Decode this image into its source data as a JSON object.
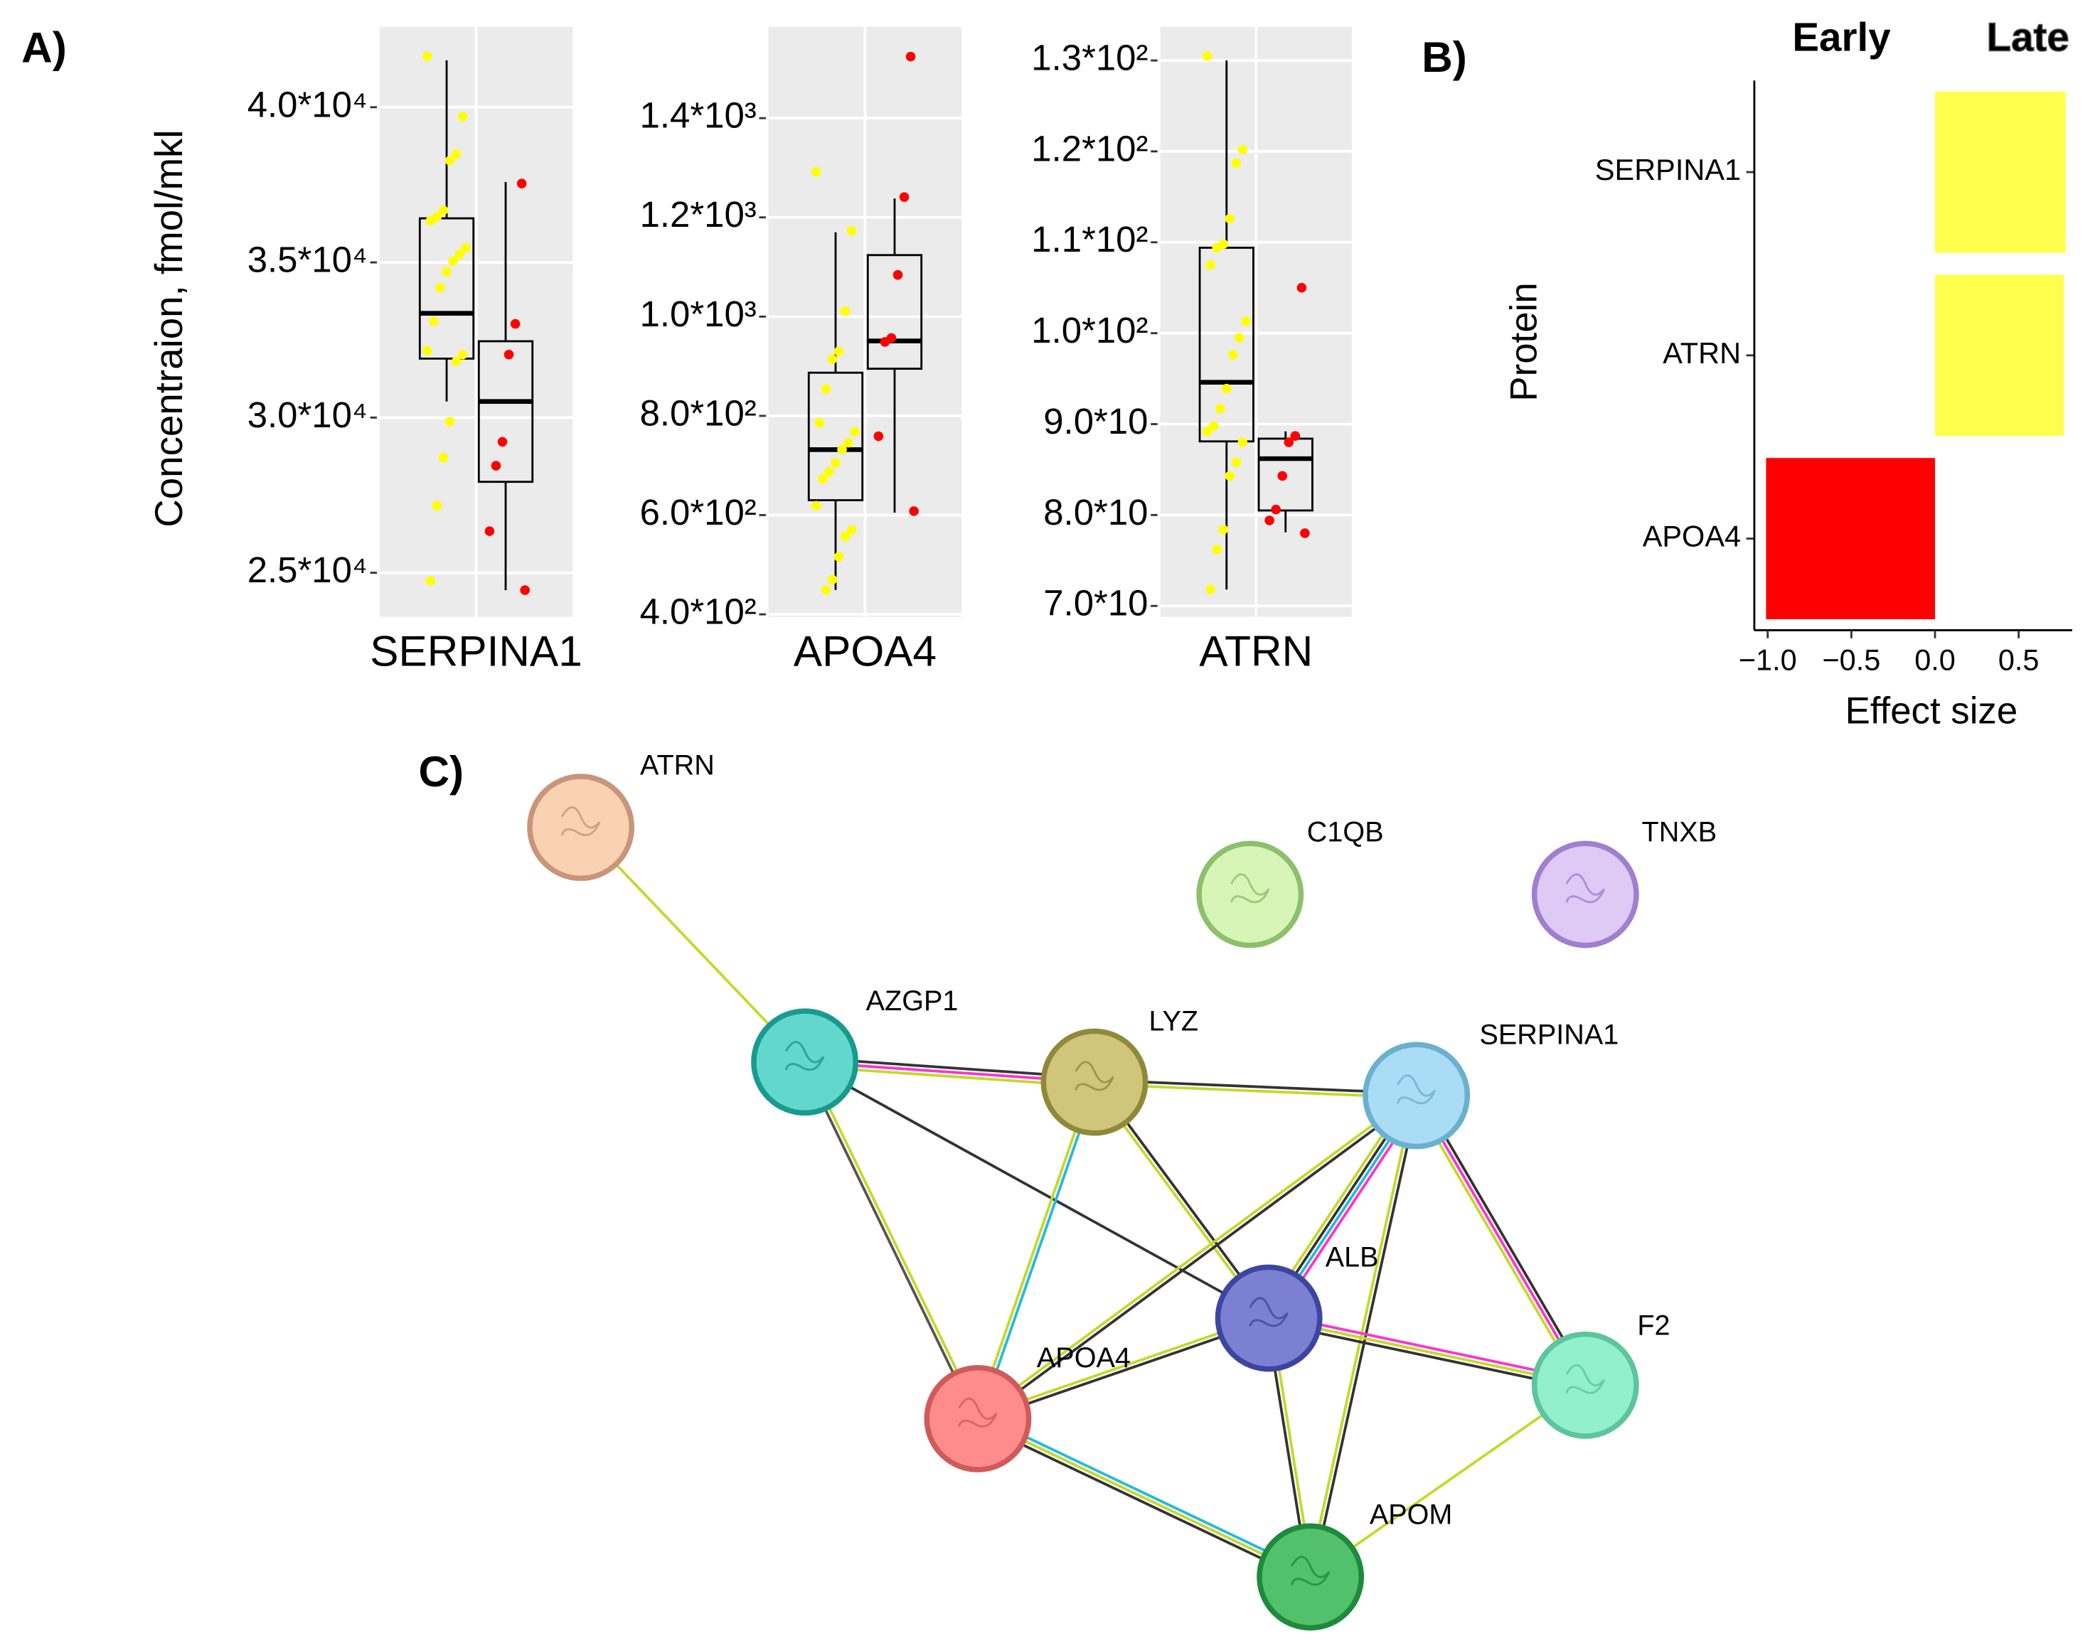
{
  "chart_data": [
    {
      "type": "box",
      "panel_label": "A)",
      "ylabel": "Concentraion, fmol/mkl",
      "xlabel": "SERPINA1",
      "ylim": [
        23580,
        42590
      ],
      "grid": true,
      "yticks": [
        {
          "value": 25000,
          "label": "2.5*10⁴"
        },
        {
          "value": 30000,
          "label": "3.0*10⁴"
        },
        {
          "value": 35000,
          "label": "3.5*10⁴"
        },
        {
          "value": 40000,
          "label": "4.0*10⁴"
        }
      ],
      "series": [
        {
          "color": "#ffff00",
          "whisker_low": 30520,
          "q1": 31900,
          "median": 33360,
          "q3": 36420,
          "whisker_high": 41510,
          "points": [
            41640,
            39700,
            38490,
            38280,
            36680,
            36470,
            36340,
            35470,
            35260,
            35040,
            34700,
            34180,
            33100,
            32160,
            32030,
            31810,
            29870,
            28710,
            27160,
            24740
          ]
        },
        {
          "color": "#ff0000",
          "whisker_low": 24440,
          "q1": 27930,
          "median": 30520,
          "q3": 32460,
          "whisker_high": 37590,
          "points": [
            37540,
            33020,
            32030,
            29220,
            28450,
            26340,
            24440
          ]
        }
      ]
    },
    {
      "type": "box",
      "xlabel": "APOA4",
      "ylim": [
        395,
        1584
      ],
      "grid": true,
      "yticks": [
        {
          "value": 400,
          "label": "4.0*10²"
        },
        {
          "value": 600,
          "label": "6.0*10²"
        },
        {
          "value": 800,
          "label": "8.0*10²"
        },
        {
          "value": 1000,
          "label": "1.0*10³"
        },
        {
          "value": 1200,
          "label": "1.2*10³"
        },
        {
          "value": 1400,
          "label": "1.4*10³"
        }
      ],
      "series": [
        {
          "color": "#ffff00",
          "whisker_low": 449,
          "q1": 630,
          "median": 732,
          "q3": 887,
          "whisker_high": 1170,
          "points": [
            1292,
            1173,
            1011,
            930,
            914,
            854,
            786,
            768,
            746,
            732,
            705,
            687,
            673,
            619,
            570,
            557,
            516,
            470,
            449
          ]
        },
        {
          "color": "#ff0000",
          "whisker_low": 605,
          "q1": 895,
          "median": 951,
          "q3": 1124,
          "whisker_high": 1238,
          "points": [
            1524,
            1241,
            1084,
            957,
            949,
            759,
            608
          ]
        }
      ]
    },
    {
      "type": "box",
      "xlabel": "ATRN",
      "ylim": [
        68.8,
        133.7
      ],
      "grid": true,
      "yticks": [
        {
          "value": 70,
          "label": "7.0*10"
        },
        {
          "value": 80,
          "label": "8.0*10"
        },
        {
          "value": 90,
          "label": "9.0*10"
        },
        {
          "value": 100,
          "label": "1.0*10²"
        },
        {
          "value": 110,
          "label": "1.1*10²"
        },
        {
          "value": 120,
          "label": "1.2*10²"
        },
        {
          "value": 130,
          "label": "1.3*10²"
        }
      ],
      "series": [
        {
          "color": "#ffff00",
          "whisker_low": 71.8,
          "q1": 88.1,
          "median": 94.6,
          "q3": 109.4,
          "whisker_high": 130.0,
          "points": [
            130.5,
            120.2,
            118.7,
            112.6,
            109.8,
            109.4,
            107.5,
            101.3,
            99.5,
            97.6,
            93.9,
            91.7,
            89.8,
            89.2,
            88.0,
            85.8,
            84.3,
            78.4,
            76.2,
            71.8
          ]
        },
        {
          "color": "#ff0000",
          "whisker_low": 78.1,
          "q1": 80.5,
          "median": 86.2,
          "q3": 88.4,
          "whisker_high": 89.2,
          "points": [
            105.0,
            88.7,
            88.0,
            84.3,
            80.6,
            79.4,
            78.0
          ]
        }
      ]
    },
    {
      "type": "bar",
      "panel_label": "B)",
      "orientation": "horizontal",
      "ylabel": "Protein",
      "xlabel": "Effect size",
      "categories": [
        "SERPINA1",
        "ATRN",
        "APOA4"
      ],
      "values": [
        0.78,
        0.77,
        -1.01
      ],
      "colors": [
        "#ffff4d",
        "#ffff4d",
        "#ff0000"
      ],
      "xlim": [
        -1.08,
        0.82
      ],
      "xticks": [
        {
          "value": -1,
          "label": "−1.0"
        },
        {
          "value": -0.5,
          "label": "−0.5"
        },
        {
          "value": 0,
          "label": "0.0"
        },
        0.5
      ],
      "legend": [
        {
          "label": "Early",
          "color": "#ff0000"
        },
        {
          "label": "Late",
          "color": "#ffff33"
        }
      ]
    }
  ],
  "network": {
    "panel_label": "C)",
    "nodes": [
      {
        "label": "ATRN",
        "fill": "#f9d2b4",
        "stroke": "#c8957a"
      },
      {
        "label": "C1QB",
        "fill": "#d8f5b8",
        "stroke": "#8dbf6d"
      },
      {
        "label": "TNXB",
        "fill": "#dfcaf5",
        "stroke": "#9f7fd0"
      },
      {
        "label": "AZGP1",
        "fill": "#62d8cc",
        "stroke": "#1a9a8e"
      },
      {
        "label": "LYZ",
        "fill": "#cfc67c",
        "stroke": "#8f8a3a"
      },
      {
        "label": "SERPINA1",
        "fill": "#aadcf5",
        "stroke": "#6ab0d0"
      },
      {
        "label": "ALB",
        "fill": "#7c80d2",
        "stroke": "#3c46a0"
      },
      {
        "label": "F2",
        "fill": "#92f0ce",
        "stroke": "#5cc49e"
      },
      {
        "label": "APOA4",
        "fill": "#ff8c8c",
        "stroke": "#d05a5a"
      },
      {
        "label": "APOM",
        "fill": "#52c06c",
        "stroke": "#1e8a3c"
      }
    ],
    "edges": [
      {
        "from": 0,
        "to": 3,
        "colors": [
          "#c5d82a"
        ]
      },
      {
        "from": 3,
        "to": 4,
        "colors": [
          "#333333",
          "#ff33cc",
          "#c5d82a"
        ]
      },
      {
        "from": 3,
        "to": 8,
        "colors": [
          "#c5d82a",
          "#555555"
        ]
      },
      {
        "from": 3,
        "to": 6,
        "colors": [
          "#333333"
        ]
      },
      {
        "from": 4,
        "to": 5,
        "colors": [
          "#333333",
          "#c5d82a"
        ]
      },
      {
        "from": 4,
        "to": 8,
        "colors": [
          "#22bbdd",
          "#c5d82a"
        ]
      },
      {
        "from": 4,
        "to": 6,
        "colors": [
          "#333333",
          "#c5d82a"
        ]
      },
      {
        "from": 5,
        "to": 8,
        "colors": [
          "#333333",
          "#c5d82a"
        ]
      },
      {
        "from": 5,
        "to": 6,
        "colors": [
          "#ff33cc",
          "#22bbdd",
          "#333333",
          "#c5d82a"
        ]
      },
      {
        "from": 5,
        "to": 9,
        "colors": [
          "#333333",
          "#c5d82a"
        ]
      },
      {
        "from": 5,
        "to": 7,
        "colors": [
          "#333333",
          "#ff33cc",
          "#c5d82a"
        ]
      },
      {
        "from": 6,
        "to": 8,
        "colors": [
          "#333333",
          "#c5d82a"
        ]
      },
      {
        "from": 6,
        "to": 7,
        "colors": [
          "#ff33cc",
          "#c5d82a",
          "#333333"
        ]
      },
      {
        "from": 6,
        "to": 9,
        "colors": [
          "#c5d82a",
          "#333333"
        ]
      },
      {
        "from": 8,
        "to": 9,
        "colors": [
          "#22bbdd",
          "#c5d82a",
          "#333333"
        ]
      },
      {
        "from": 7,
        "to": 9,
        "colors": [
          "#c5d82a"
        ]
      }
    ]
  }
}
